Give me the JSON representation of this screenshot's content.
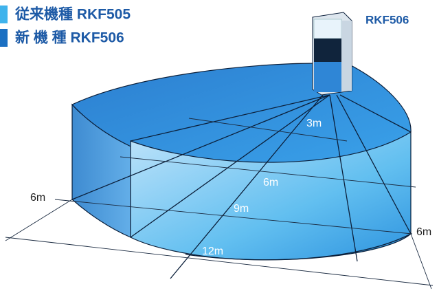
{
  "legend": [
    {
      "label": "従来機種 RKF505"
    },
    {
      "label": "新 機 種 RKF506"
    }
  ],
  "sensor": {
    "label": "RKF506"
  },
  "distances": {
    "depth": [
      "3m",
      "6m",
      "9m",
      "12m"
    ],
    "left": "6m",
    "right": "6m"
  }
}
